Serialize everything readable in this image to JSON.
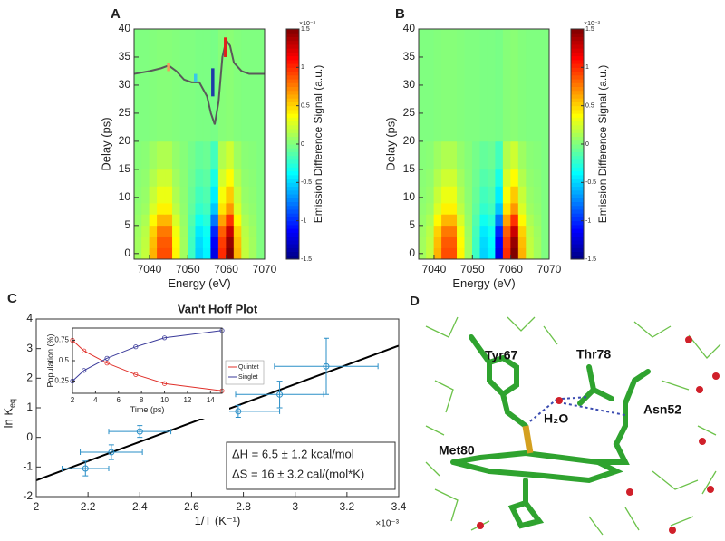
{
  "chart_data": [
    {
      "type": "heatmap",
      "panel": "A",
      "xlabel": "Energy (eV)",
      "ylabel": "Delay (ps)",
      "xlim": [
        7036,
        7070
      ],
      "xticks": [
        7040,
        7050,
        7060,
        7070
      ],
      "ylim": [
        -1,
        40
      ],
      "yticks": [
        0,
        5,
        10,
        15,
        20,
        25,
        30,
        35,
        40
      ],
      "xbins": [
        7036,
        7038,
        7040,
        7042,
        7044,
        7046,
        7048,
        7050,
        7052,
        7054,
        7056,
        7058,
        7060,
        7062,
        7064,
        7066,
        7068,
        7070
      ],
      "ybins": [
        -1,
        1,
        3,
        5,
        7,
        9,
        12,
        15,
        20,
        40
      ],
      "z": [
        [
          0.1,
          0.2,
          0.6,
          0.9,
          0.9,
          0.4,
          0.1,
          -0.2,
          -0.5,
          -0.4,
          -1.2,
          1.0,
          1.5,
          0.6,
          0.2,
          0.1,
          0
        ],
        [
          0.1,
          0.19,
          0.57,
          0.86,
          0.86,
          0.38,
          0.1,
          -0.19,
          -0.48,
          -0.38,
          -1.14,
          0.95,
          1.43,
          0.57,
          0.19,
          0.1,
          0
        ],
        [
          0.09,
          0.17,
          0.51,
          0.77,
          0.77,
          0.34,
          0.09,
          -0.17,
          -0.43,
          -0.34,
          -1.02,
          0.85,
          1.28,
          0.51,
          0.17,
          0.09,
          0
        ],
        [
          0.07,
          0.13,
          0.39,
          0.59,
          0.59,
          0.26,
          0.07,
          -0.13,
          -0.33,
          -0.26,
          -0.78,
          0.65,
          0.98,
          0.39,
          0.13,
          0.07,
          0
        ],
        [
          0.05,
          0.09,
          0.27,
          0.41,
          0.41,
          0.18,
          0.05,
          -0.09,
          -0.23,
          -0.18,
          -0.54,
          0.45,
          0.68,
          0.27,
          0.09,
          0.05,
          0
        ],
        [
          0.04,
          0.07,
          0.21,
          0.32,
          0.32,
          0.14,
          0.04,
          -0.07,
          -0.18,
          -0.14,
          -0.42,
          0.35,
          0.53,
          0.21,
          0.07,
          0.04,
          0
        ],
        [
          0.03,
          0.05,
          0.15,
          0.23,
          0.23,
          0.1,
          0.03,
          -0.05,
          -0.13,
          -0.1,
          -0.3,
          0.25,
          0.38,
          0.15,
          0.05,
          0.03,
          0
        ],
        [
          0.02,
          0.03,
          0.09,
          0.14,
          0.14,
          0.06,
          0.02,
          -0.03,
          -0.08,
          -0.06,
          -0.18,
          0.15,
          0.23,
          0.09,
          0.03,
          0.02,
          0
        ],
        [
          0,
          0,
          0.01,
          0.02,
          0.02,
          0.01,
          0,
          0,
          -0.01,
          -0.01,
          -0.02,
          0.02,
          0.03,
          0.01,
          0,
          0,
          0
        ]
      ],
      "zlim": [
        -1.5,
        1.5
      ],
      "zticks": [
        -1.5,
        -1,
        -0.5,
        0,
        0.5,
        1,
        1.5
      ],
      "zscale_label": "×10⁻³",
      "zlabel": "Emission Difference Signal (a.u.)",
      "trace": {
        "color": "#5a5a5a",
        "x": [
          7036,
          7040,
          7043,
          7045,
          7047,
          7049,
          7051,
          7053,
          7055,
          7056,
          7057,
          7058,
          7059,
          7060,
          7061,
          7062,
          7064,
          7066,
          7070
        ],
        "values": [
          32,
          32.5,
          33,
          33.5,
          32.5,
          31,
          30.5,
          30.5,
          28,
          25,
          23,
          27,
          35,
          38,
          37,
          34,
          32.5,
          32,
          32
        ]
      },
      "markers": [
        {
          "x": 7045,
          "y": [
            32.5,
            34
          ],
          "color": "#f39c5a"
        },
        {
          "x": 7052,
          "y": [
            30.5,
            32
          ],
          "color": "#38c8e8"
        },
        {
          "x": 7056.5,
          "y": [
            28,
            33
          ],
          "color": "#1f3aa8"
        },
        {
          "x": 7059.8,
          "y": [
            35,
            38.5
          ],
          "color": "#e0201c"
        }
      ]
    },
    {
      "type": "heatmap",
      "panel": "B",
      "xlabel": "Energy (eV)",
      "ylabel": "Delay (ps)",
      "xlim": [
        7036,
        7070
      ],
      "xticks": [
        7040,
        7050,
        7060,
        7070
      ],
      "ylim": [
        -1,
        40
      ],
      "yticks": [
        0,
        5,
        10,
        15,
        20,
        25,
        30,
        35,
        40
      ],
      "xbins": [
        7036,
        7038,
        7040,
        7042,
        7044,
        7046,
        7048,
        7050,
        7052,
        7054,
        7056,
        7058,
        7060,
        7062,
        7064,
        7066,
        7068,
        7070
      ],
      "ybins": [
        -1,
        1,
        3,
        5,
        7,
        9,
        12,
        15,
        20,
        40
      ],
      "z": [
        [
          0.1,
          0.2,
          0.6,
          0.9,
          0.9,
          0.4,
          0.1,
          -0.2,
          -0.5,
          -0.4,
          -1.2,
          1.0,
          1.5,
          0.6,
          0.2,
          0.1,
          0
        ],
        [
          0.1,
          0.19,
          0.57,
          0.86,
          0.86,
          0.38,
          0.1,
          -0.19,
          -0.48,
          -0.38,
          -1.14,
          0.95,
          1.43,
          0.57,
          0.19,
          0.1,
          0
        ],
        [
          0.09,
          0.17,
          0.51,
          0.77,
          0.77,
          0.34,
          0.09,
          -0.17,
          -0.43,
          -0.34,
          -1.02,
          0.85,
          1.28,
          0.51,
          0.17,
          0.09,
          0
        ],
        [
          0.07,
          0.13,
          0.39,
          0.59,
          0.59,
          0.26,
          0.07,
          -0.13,
          -0.33,
          -0.26,
          -0.78,
          0.65,
          0.98,
          0.39,
          0.13,
          0.07,
          0
        ],
        [
          0.05,
          0.09,
          0.27,
          0.41,
          0.41,
          0.18,
          0.05,
          -0.09,
          -0.23,
          -0.18,
          -0.54,
          0.45,
          0.68,
          0.27,
          0.09,
          0.05,
          0
        ],
        [
          0.04,
          0.07,
          0.21,
          0.32,
          0.32,
          0.14,
          0.04,
          -0.07,
          -0.18,
          -0.14,
          -0.42,
          0.35,
          0.53,
          0.21,
          0.07,
          0.04,
          0
        ],
        [
          0.03,
          0.05,
          0.15,
          0.23,
          0.23,
          0.1,
          0.03,
          -0.05,
          -0.13,
          -0.1,
          -0.3,
          0.25,
          0.38,
          0.15,
          0.05,
          0.03,
          0
        ],
        [
          0.02,
          0.03,
          0.09,
          0.14,
          0.14,
          0.06,
          0.02,
          -0.03,
          -0.08,
          -0.06,
          -0.18,
          0.15,
          0.23,
          0.09,
          0.03,
          0.02,
          0
        ],
        [
          0,
          0,
          0.01,
          0.02,
          0.02,
          0.01,
          0,
          0,
          -0.01,
          -0.01,
          -0.02,
          0.02,
          0.03,
          0.01,
          0,
          0,
          0
        ]
      ],
      "zlim": [
        -1.5,
        1.5
      ],
      "zticks": [
        -1.5,
        -1,
        -0.5,
        0,
        0.5,
        1,
        1.5
      ],
      "zscale_label": "×10⁻³",
      "zlabel": "Emission Difference Signal (a.u.)"
    },
    {
      "type": "scatter",
      "panel": "C",
      "title": "Van't Hoff Plot",
      "xlabel": "1/T (K⁻¹)",
      "ylabel": "ln K",
      "ylabel_sub": "eq",
      "xscale_label": "×10⁻³",
      "xlim": [
        2,
        3.4
      ],
      "xticks": [
        2,
        2.2,
        2.4,
        2.6,
        2.8,
        3,
        3.2,
        3.4
      ],
      "ylim": [
        -2,
        4
      ],
      "yticks": [
        -2,
        -1,
        0,
        1,
        2,
        3,
        4
      ],
      "color": "#2a8fc7",
      "x": [
        2.19,
        2.29,
        2.4,
        2.78,
        2.94,
        3.12
      ],
      "values": [
        -1.05,
        -0.5,
        0.2,
        0.88,
        1.45,
        2.4
      ],
      "xerr": [
        0.09,
        0.12,
        0.12,
        0.16,
        0.17,
        0.2
      ],
      "yerr": [
        0.25,
        0.25,
        0.2,
        0.2,
        0.45,
        0.95
      ],
      "fit": {
        "color": "#000000",
        "x": [
          2,
          3.4
        ],
        "values": [
          -1.45,
          3.1
        ]
      },
      "annotations": [
        "ΔH = 6.5 ± 1.2 kcal/mol",
        "ΔS = 16 ± 3.2 cal/(mol*K)"
      ]
    },
    {
      "type": "line",
      "xlabel": "Time (ps)",
      "ylabel": "Population (%)",
      "xlim": [
        2,
        15
      ],
      "xticks": [
        2,
        4,
        6,
        8,
        10,
        12,
        14
      ],
      "ylim": [
        0.1,
        0.9
      ],
      "yticks": [
        0.25,
        0.5,
        0.75
      ],
      "x": [
        2,
        3,
        5,
        7.5,
        10,
        15
      ],
      "series": [
        {
          "name": "Quintet",
          "color": "#e0302a",
          "values": [
            0.75,
            0.62,
            0.47,
            0.33,
            0.22,
            0.13
          ]
        },
        {
          "name": "Singlet",
          "color": "#3a3a9a",
          "values": [
            0.25,
            0.38,
            0.53,
            0.67,
            0.78,
            0.87
          ]
        }
      ],
      "legend": "upper right"
    }
  ],
  "structure": {
    "panel": "D",
    "labels": [
      "Tyr67",
      "Thr78",
      "H₂O",
      "Asn52",
      "Met80"
    ]
  }
}
